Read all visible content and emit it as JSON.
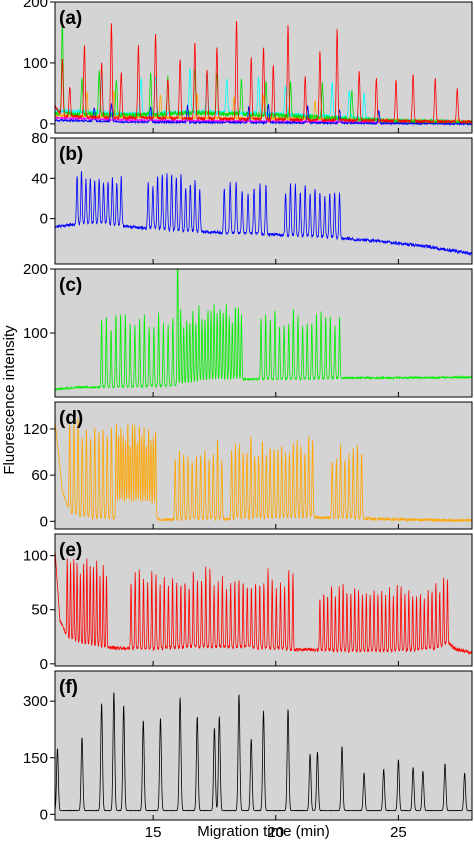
{
  "figure": {
    "ylabel": "Fluorescence intensity",
    "xlabel": "Migration time (min)",
    "x_ticks": [
      15,
      20,
      25
    ],
    "xlim": [
      11,
      28
    ],
    "panel_background": "#d4d4d4"
  },
  "chart_data": [
    {
      "type": "line",
      "label": "(a)",
      "ylim": [
        -15,
        200
      ],
      "yticks": [
        0,
        100,
        200
      ],
      "series": [
        {
          "color": "#ff00ff",
          "baseline": [
            [
              11,
              10
            ],
            [
              14,
              6
            ],
            [
              20,
              4
            ],
            [
              28,
              2
            ]
          ],
          "peaks": [],
          "noise": 1.5,
          "seed": 11
        },
        {
          "color": "#00ffff",
          "baseline": [
            [
              11,
              22
            ],
            [
              14,
              16
            ],
            [
              17,
              20
            ],
            [
              20,
              16
            ],
            [
              23,
              10
            ],
            [
              25,
              5
            ],
            [
              28,
              3
            ]
          ],
          "peaks": [
            [
              12.9,
              60
            ],
            [
              14.5,
              58
            ],
            [
              15.1,
              62
            ],
            [
              16.5,
              70
            ],
            [
              17.2,
              65
            ],
            [
              18.0,
              55
            ],
            [
              19.3,
              60
            ],
            [
              20.4,
              50
            ],
            [
              22.3,
              55
            ],
            [
              23.0,
              45
            ],
            [
              23.6,
              40
            ]
          ],
          "width": 0.035,
          "noise": 3.5,
          "seed": 12
        },
        {
          "color": "#ffa500",
          "baseline": [
            [
              11,
              14
            ],
            [
              16,
              10
            ],
            [
              22,
              8
            ],
            [
              28,
              4
            ]
          ],
          "peaks": [
            [
              12.3,
              40
            ],
            [
              13.4,
              42
            ],
            [
              15.3,
              38
            ],
            [
              16.8,
              40
            ],
            [
              18.3,
              35
            ],
            [
              19.5,
              38
            ],
            [
              21.6,
              30
            ]
          ],
          "width": 0.03,
          "noise": 2,
          "seed": 13
        },
        {
          "color": "#00dd00",
          "baseline": [
            [
              11,
              18
            ],
            [
              14,
              14
            ],
            [
              17,
              18
            ],
            [
              20,
              14
            ],
            [
              23,
              8
            ],
            [
              25,
              4
            ],
            [
              28,
              2
            ]
          ],
          "peaks": [
            [
              11.3,
              150
            ],
            [
              12.1,
              60
            ],
            [
              12.8,
              72
            ],
            [
              13.5,
              58
            ],
            [
              14.9,
              66
            ],
            [
              15.6,
              60
            ],
            [
              16.7,
              74
            ],
            [
              17.6,
              68
            ],
            [
              18.6,
              58
            ],
            [
              19.6,
              56
            ],
            [
              20.6,
              54
            ],
            [
              21.9,
              55
            ],
            [
              23.1,
              48
            ]
          ],
          "width": 0.03,
          "noise": 4,
          "seed": 14
        },
        {
          "color": "#0000ff",
          "baseline": [
            [
              11,
              6
            ],
            [
              14,
              3
            ],
            [
              20,
              2
            ],
            [
              28,
              0
            ]
          ],
          "peaks": [
            [
              12.6,
              22
            ],
            [
              13.3,
              30
            ],
            [
              14.9,
              26
            ],
            [
              16.4,
              28
            ],
            [
              18.9,
              25
            ],
            [
              19.7,
              30
            ],
            [
              21.3,
              28
            ],
            [
              22.6,
              22
            ],
            [
              24.2,
              20
            ]
          ],
          "width": 0.03,
          "noise": 1.5,
          "seed": 15
        },
        {
          "color": "#ff0000",
          "baseline": [
            [
              11,
              30
            ],
            [
              11.3,
              12
            ],
            [
              14,
              10
            ],
            [
              20,
              7
            ],
            [
              28,
              3
            ]
          ],
          "peaks": [
            [
              11.3,
              95
            ],
            [
              11.6,
              50
            ],
            [
              12.2,
              120
            ],
            [
              12.9,
              90
            ],
            [
              13.3,
              155
            ],
            [
              13.7,
              75
            ],
            [
              14.4,
              118
            ],
            [
              15.1,
              140
            ],
            [
              15.6,
              65
            ],
            [
              16.1,
              98
            ],
            [
              16.7,
              125
            ],
            [
              17.2,
              80
            ],
            [
              17.6,
              118
            ],
            [
              18.4,
              165
            ],
            [
              19.0,
              100
            ],
            [
              19.5,
              120
            ],
            [
              19.9,
              90
            ],
            [
              20.5,
              155
            ],
            [
              21.2,
              70
            ],
            [
              21.8,
              112
            ],
            [
              22.5,
              148
            ],
            [
              23.4,
              82
            ],
            [
              24.1,
              70
            ],
            [
              24.9,
              68
            ],
            [
              25.6,
              78
            ],
            [
              26.5,
              72
            ],
            [
              27.4,
              55
            ]
          ],
          "width": 0.03,
          "noise": 2.5,
          "seed": 16
        }
      ]
    },
    {
      "type": "line",
      "label": "(b)",
      "ylim": [
        -45,
        80
      ],
      "yticks": [
        0,
        40,
        80
      ],
      "series": [
        {
          "color": "#0000ff",
          "baseline": [
            [
              11,
              -8
            ],
            [
              12,
              -5
            ],
            [
              13,
              -4
            ],
            [
              14,
              -8
            ],
            [
              15,
              -10
            ],
            [
              17,
              -13
            ],
            [
              19,
              -15
            ],
            [
              22,
              -18
            ],
            [
              24,
              -22
            ],
            [
              26,
              -27
            ],
            [
              28,
              -35
            ]
          ],
          "burst_groups": [
            {
              "start": 11.9,
              "end": 13.7,
              "n": 11,
              "height": 47
            },
            {
              "start": 14.8,
              "end": 16.9,
              "n": 12,
              "height": 49
            },
            {
              "start": 17.9,
              "end": 19.6,
              "n": 8,
              "height": 46
            },
            {
              "start": 20.4,
              "end": 22.6,
              "n": 12,
              "height": 46
            }
          ],
          "width": 0.025,
          "noise": 1.6,
          "seed": 21
        }
      ]
    },
    {
      "type": "line",
      "label": "(c)",
      "ylim": [
        0,
        200
      ],
      "yticks": [
        100,
        200
      ],
      "series": [
        {
          "color": "#00ee00",
          "baseline": [
            [
              11,
              12
            ],
            [
              12,
              15
            ],
            [
              14,
              16
            ],
            [
              16,
              18
            ],
            [
              17,
              25
            ],
            [
              19,
              28
            ],
            [
              21,
              28
            ],
            [
              23,
              30
            ],
            [
              26,
              30
            ],
            [
              28,
              31
            ]
          ],
          "burst_groups": [
            {
              "start": 12.9,
              "end": 16.0,
              "n": 17,
              "height": 105
            },
            {
              "start": 16.0,
              "end": 18.6,
              "n": 22,
              "height": 105
            },
            {
              "start": 19.4,
              "end": 22.6,
              "n": 18,
              "height": 95
            }
          ],
          "width": 0.02,
          "noise": 1.6,
          "seed": 31
        }
      ]
    },
    {
      "type": "line",
      "label": "(d)",
      "ylim": [
        -10,
        155
      ],
      "yticks": [
        0,
        60,
        120
      ],
      "series": [
        {
          "color": "#ffa500",
          "baseline": [
            [
              11,
              130
            ],
            [
              11.3,
              40
            ],
            [
              11.6,
              10
            ],
            [
              12.5,
              5
            ],
            [
              14,
              3
            ],
            [
              16,
              2
            ],
            [
              18,
              3
            ],
            [
              20,
              4
            ],
            [
              22,
              5
            ],
            [
              24,
              3
            ],
            [
              26,
              2
            ],
            [
              28,
              1
            ]
          ],
          "burst_groups": [
            {
              "start": 11.6,
              "end": 13.3,
              "n": 11,
              "height": 115
            },
            {
              "start": 13.5,
              "end": 15.1,
              "n": 18,
              "height": 110
            },
            {
              "start": 15.9,
              "end": 17.8,
              "n": 12,
              "height": 90
            },
            {
              "start": 18.2,
              "end": 21.5,
              "n": 22,
              "height": 95
            },
            {
              "start": 22.3,
              "end": 23.5,
              "n": 8,
              "height": 88
            }
          ],
          "width": 0.022,
          "noise": 1.8,
          "seed": 41
        }
      ]
    },
    {
      "type": "line",
      "label": "(e)",
      "ylim": [
        -2,
        120
      ],
      "yticks": [
        0,
        50,
        100
      ],
      "series": [
        {
          "color": "#ff0000",
          "baseline": [
            [
              11,
              105
            ],
            [
              11.2,
              40
            ],
            [
              11.5,
              25
            ],
            [
              12,
              20
            ],
            [
              13,
              15
            ],
            [
              15,
              14
            ],
            [
              17,
              16
            ],
            [
              19,
              15
            ],
            [
              21,
              13
            ],
            [
              23,
              12
            ],
            [
              25,
              12
            ],
            [
              26.5,
              14
            ],
            [
              27,
              20
            ],
            [
              27.3,
              14
            ],
            [
              28,
              10
            ]
          ],
          "burst_groups": [
            {
              "start": 11.5,
              "end": 13.1,
              "n": 13,
              "height": 70
            },
            {
              "start": 14.1,
              "end": 20.7,
              "n": 40,
              "height": 65
            },
            {
              "start": 21.8,
              "end": 27.0,
              "n": 34,
              "height": 55
            }
          ],
          "width": 0.018,
          "noise": 1.6,
          "seed": 51
        }
      ]
    },
    {
      "type": "line",
      "label": "(f)",
      "ylim": [
        -15,
        380
      ],
      "yticks": [
        0,
        150,
        300
      ],
      "series": [
        {
          "color": "#000000",
          "baseline": [
            [
              11,
              10
            ],
            [
              28,
              10
            ]
          ],
          "peaks": [
            [
              11.1,
              165
            ],
            [
              12.1,
              195
            ],
            [
              12.9,
              285
            ],
            [
              13.4,
              315
            ],
            [
              13.8,
              280
            ],
            [
              14.6,
              240
            ],
            [
              15.3,
              245
            ],
            [
              16.1,
              300
            ],
            [
              16.8,
              250
            ],
            [
              17.5,
              220
            ],
            [
              17.7,
              250
            ],
            [
              18.5,
              310
            ],
            [
              19.0,
              190
            ],
            [
              19.5,
              265
            ],
            [
              20.5,
              270
            ],
            [
              21.4,
              150
            ],
            [
              21.7,
              155
            ],
            [
              22.7,
              170
            ],
            [
              23.6,
              100
            ],
            [
              24.4,
              110
            ],
            [
              25.0,
              135
            ],
            [
              25.6,
              115
            ],
            [
              26.0,
              105
            ],
            [
              26.9,
              125
            ],
            [
              27.7,
              100
            ]
          ],
          "width": 0.035,
          "noise": 0.6,
          "seed": 61
        }
      ]
    }
  ]
}
